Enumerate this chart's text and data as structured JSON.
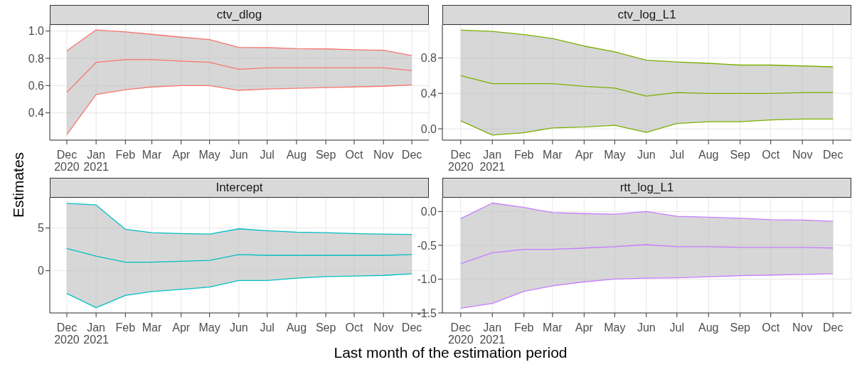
{
  "chart_data": [
    {
      "type": "line",
      "title": "ctv_dlog",
      "ylabel": "Estimates",
      "x": [
        "2020-12",
        "2021-01",
        "2021-02",
        "2021-03",
        "2021-04",
        "2021-05",
        "2021-06",
        "2021-07",
        "2021-08",
        "2021-09",
        "2021-10",
        "2021-11",
        "2021-12"
      ],
      "series": [
        {
          "color": "#f8766d",
          "values": [
            0.55,
            0.77,
            0.79,
            0.79,
            0.78,
            0.77,
            0.72,
            0.73,
            0.73,
            0.73,
            0.73,
            0.73,
            0.71
          ],
          "lower": [
            0.24,
            0.535,
            0.57,
            0.59,
            0.6,
            0.6,
            0.565,
            0.575,
            0.58,
            0.585,
            0.59,
            0.595,
            0.605
          ],
          "upper": [
            0.855,
            1.008,
            0.994,
            0.976,
            0.955,
            0.937,
            0.88,
            0.878,
            0.871,
            0.869,
            0.863,
            0.859,
            0.82
          ]
        },
        {
          "color": "#f8766d",
          "values": [
            0.24,
            0.535,
            0.57,
            0.59,
            0.6,
            0.6,
            0.565,
            0.575,
            0.58,
            0.585,
            0.59,
            0.595,
            0.605
          ]
        },
        {
          "color": "#f8766d",
          "values": [
            0.855,
            1.008,
            0.994,
            0.976,
            0.955,
            0.937,
            0.88,
            0.878,
            0.871,
            0.869,
            0.863,
            0.859,
            0.82
          ]
        }
      ],
      "xlim": [
        "2020-11-13",
        "2021-12-19"
      ],
      "xticks": [
        {
          "value": "2020-12",
          "label": "Dec\n2020"
        },
        {
          "value": "2021-01",
          "label": "Jan\n2021"
        },
        {
          "value": "2021-02",
          "label": "Feb"
        },
        {
          "value": "2021-03",
          "label": "Mar"
        },
        {
          "value": "2021-04",
          "label": "Apr"
        },
        {
          "value": "2021-05",
          "label": "May"
        },
        {
          "value": "2021-06",
          "label": "Jun"
        },
        {
          "value": "2021-07",
          "label": "Jul"
        },
        {
          "value": "2021-08",
          "label": "Aug"
        },
        {
          "value": "2021-09",
          "label": "Sep"
        },
        {
          "value": "2021-10",
          "label": "Oct"
        },
        {
          "value": "2021-11",
          "label": "Nov"
        },
        {
          "value": "2021-12",
          "label": "Dec"
        }
      ],
      "ylim": [
        0.2,
        1.045
      ],
      "yticks": [
        {
          "value": 0.4,
          "label": "0.4"
        },
        {
          "value": 0.6,
          "label": "0.6"
        },
        {
          "value": 0.8,
          "label": "0.8"
        },
        {
          "value": 1,
          "label": "1.0"
        }
      ],
      "grid": true,
      "marker": "none"
    },
    {
      "type": "line",
      "title": "ctv_log_L1",
      "x": [
        "2020-12",
        "2021-01",
        "2021-02",
        "2021-03",
        "2021-04",
        "2021-05",
        "2021-06",
        "2021-07",
        "2021-08",
        "2021-09",
        "2021-10",
        "2021-11",
        "2021-12"
      ],
      "series": [
        {
          "color": "#7cae00",
          "values": [
            0.6,
            0.51,
            0.51,
            0.51,
            0.48,
            0.46,
            0.37,
            0.41,
            0.4,
            0.4,
            0.4,
            0.41,
            0.41
          ],
          "lower": [
            0.09,
            -0.07,
            -0.045,
            0.01,
            0.02,
            0.04,
            -0.04,
            0.06,
            0.08,
            0.08,
            0.1,
            0.11,
            0.11
          ],
          "upper": [
            1.115,
            1.1,
            1.065,
            1.02,
            0.935,
            0.87,
            0.775,
            0.755,
            0.74,
            0.72,
            0.72,
            0.71,
            0.7
          ]
        },
        {
          "color": "#7cae00",
          "values": [
            0.09,
            -0.07,
            -0.045,
            0.01,
            0.02,
            0.04,
            -0.04,
            0.06,
            0.08,
            0.08,
            0.1,
            0.11,
            0.11
          ]
        },
        {
          "color": "#7cae00",
          "values": [
            1.115,
            1.1,
            1.065,
            1.02,
            0.935,
            0.87,
            0.775,
            0.755,
            0.74,
            0.72,
            0.72,
            0.71,
            0.7
          ]
        }
      ],
      "xlim": [
        "2020-11-13",
        "2021-12-19"
      ],
      "xticks": [
        {
          "value": "2020-12",
          "label": "Dec\n2020"
        },
        {
          "value": "2021-01",
          "label": "Jan\n2021"
        },
        {
          "value": "2021-02",
          "label": "Feb"
        },
        {
          "value": "2021-03",
          "label": "Mar"
        },
        {
          "value": "2021-04",
          "label": "Apr"
        },
        {
          "value": "2021-05",
          "label": "May"
        },
        {
          "value": "2021-06",
          "label": "Jun"
        },
        {
          "value": "2021-07",
          "label": "Jul"
        },
        {
          "value": "2021-08",
          "label": "Aug"
        },
        {
          "value": "2021-09",
          "label": "Sep"
        },
        {
          "value": "2021-10",
          "label": "Oct"
        },
        {
          "value": "2021-11",
          "label": "Nov"
        },
        {
          "value": "2021-12",
          "label": "Dec"
        }
      ],
      "ylim": [
        -0.128,
        1.174
      ],
      "yticks": [
        {
          "value": 0,
          "label": "0.0"
        },
        {
          "value": 0.4,
          "label": "0.4"
        },
        {
          "value": 0.8,
          "label": "0.8"
        }
      ],
      "grid": true,
      "marker": "none"
    },
    {
      "type": "line",
      "title": "Intercept",
      "xlabel": "Last month of the estimation period",
      "x": [
        "2020-12",
        "2021-01",
        "2021-02",
        "2021-03",
        "2021-04",
        "2021-05",
        "2021-06",
        "2021-07",
        "2021-08",
        "2021-09",
        "2021-10",
        "2021-11",
        "2021-12"
      ],
      "series": [
        {
          "color": "#00bfc4",
          "values": [
            2.6,
            1.7,
            1.0,
            1.0,
            1.1,
            1.2,
            1.9,
            1.8,
            1.8,
            1.8,
            1.8,
            1.8,
            1.9
          ],
          "lower": [
            -2.66,
            -4.32,
            -2.89,
            -2.44,
            -2.18,
            -1.92,
            -1.14,
            -1.14,
            -0.88,
            -0.68,
            -0.62,
            -0.55,
            -0.36
          ],
          "upper": [
            7.89,
            7.69,
            4.84,
            4.45,
            4.35,
            4.29,
            4.9,
            4.68,
            4.51,
            4.45,
            4.35,
            4.29,
            4.25
          ]
        },
        {
          "color": "#00bfc4",
          "values": [
            -2.66,
            -4.32,
            -2.89,
            -2.44,
            -2.18,
            -1.92,
            -1.14,
            -1.14,
            -0.88,
            -0.68,
            -0.62,
            -0.55,
            -0.36
          ]
        },
        {
          "color": "#00bfc4",
          "values": [
            7.89,
            7.69,
            4.84,
            4.45,
            4.35,
            4.29,
            4.9,
            4.68,
            4.51,
            4.45,
            4.35,
            4.29,
            4.25
          ]
        }
      ],
      "xlim": [
        "2020-11-13",
        "2021-12-19"
      ],
      "xticks": [
        {
          "value": "2020-12",
          "label": "Dec\n2020"
        },
        {
          "value": "2021-01",
          "label": "Jan\n2021"
        },
        {
          "value": "2021-02",
          "label": "Feb"
        },
        {
          "value": "2021-03",
          "label": "Mar"
        },
        {
          "value": "2021-04",
          "label": "Apr"
        },
        {
          "value": "2021-05",
          "label": "May"
        },
        {
          "value": "2021-06",
          "label": "Jun"
        },
        {
          "value": "2021-07",
          "label": "Jul"
        },
        {
          "value": "2021-08",
          "label": "Aug"
        },
        {
          "value": "2021-09",
          "label": "Sep"
        },
        {
          "value": "2021-10",
          "label": "Oct"
        },
        {
          "value": "2021-11",
          "label": "Nov"
        },
        {
          "value": "2021-12",
          "label": "Dec"
        }
      ],
      "ylim": [
        -4.94,
        8.54
      ],
      "yticks": [
        0,
        5
      ],
      "grid": true,
      "marker": "none"
    },
    {
      "type": "line",
      "title": "rtt_log_L1",
      "x": [
        "2020-12",
        "2021-01",
        "2021-02",
        "2021-03",
        "2021-04",
        "2021-05",
        "2021-06",
        "2021-07",
        "2021-08",
        "2021-09",
        "2021-10",
        "2021-11",
        "2021-12"
      ],
      "series": [
        {
          "color": "#c77cff",
          "values": [
            -0.77,
            -0.61,
            -0.56,
            -0.56,
            -0.54,
            -0.52,
            -0.49,
            -0.52,
            -0.52,
            -0.53,
            -0.53,
            -0.53,
            -0.54
          ],
          "lower": [
            -1.43,
            -1.36,
            -1.18,
            -1.1,
            -1.04,
            -1.0,
            -0.985,
            -0.98,
            -0.965,
            -0.95,
            -0.94,
            -0.93,
            -0.92
          ],
          "upper": [
            -0.105,
            0.125,
            0.06,
            -0.015,
            -0.03,
            -0.04,
            0.0,
            -0.07,
            -0.085,
            -0.1,
            -0.12,
            -0.125,
            -0.145
          ]
        },
        {
          "color": "#c77cff",
          "values": [
            -1.43,
            -1.36,
            -1.18,
            -1.1,
            -1.04,
            -1.0,
            -0.985,
            -0.98,
            -0.965,
            -0.95,
            -0.94,
            -0.93,
            -0.92
          ]
        },
        {
          "color": "#c77cff",
          "values": [
            -0.105,
            0.125,
            0.06,
            -0.015,
            -0.03,
            -0.04,
            0.0,
            -0.07,
            -0.085,
            -0.1,
            -0.12,
            -0.125,
            -0.145
          ]
        }
      ],
      "xlim": [
        "2020-11-13",
        "2021-12-19"
      ],
      "xticks": [
        {
          "value": "2020-12",
          "label": "Dec\n2020"
        },
        {
          "value": "2021-01",
          "label": "Jan\n2021"
        },
        {
          "value": "2021-02",
          "label": "Feb"
        },
        {
          "value": "2021-03",
          "label": "Mar"
        },
        {
          "value": "2021-04",
          "label": "Apr"
        },
        {
          "value": "2021-05",
          "label": "May"
        },
        {
          "value": "2021-06",
          "label": "Jun"
        },
        {
          "value": "2021-07",
          "label": "Jul"
        },
        {
          "value": "2021-08",
          "label": "Aug"
        },
        {
          "value": "2021-09",
          "label": "Sep"
        },
        {
          "value": "2021-10",
          "label": "Oct"
        },
        {
          "value": "2021-11",
          "label": "Nov"
        },
        {
          "value": "2021-12",
          "label": "Dec"
        }
      ],
      "ylim": [
        -1.5,
        0.204
      ],
      "yticks": [
        {
          "value": -1.5,
          "label": "-1.5"
        },
        {
          "value": -1,
          "label": "-1.0"
        },
        {
          "value": -0.5,
          "label": "-0.5"
        },
        {
          "value": 0,
          "label": "0.0"
        }
      ],
      "grid": true,
      "marker": "none"
    }
  ]
}
